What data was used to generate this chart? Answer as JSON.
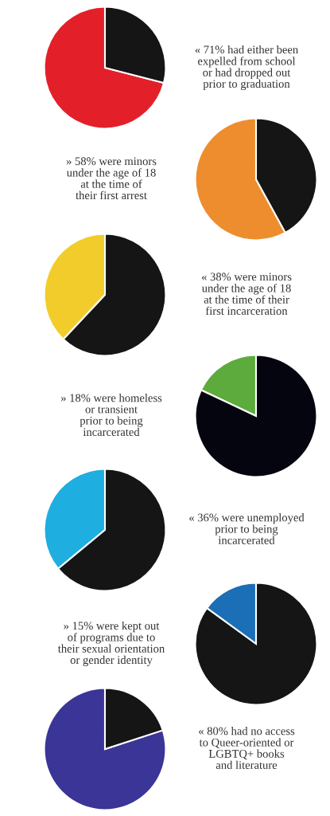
{
  "chart_data": [
    {
      "type": "pie",
      "categories": [
        null,
        null
      ],
      "values": [
        71,
        29
      ],
      "colors": [
        "#e3202a",
        "#151515"
      ],
      "annotations": [
        "« 71% had either been\nexpelled from school\nor had dropped out\nprior to graduation"
      ]
    },
    {
      "type": "pie",
      "categories": [
        null,
        null
      ],
      "values": [
        58,
        42
      ],
      "colors": [
        "#ee8d2e",
        "#151515"
      ],
      "annotations": [
        "» 58% were minors\nunder the age of 18\nat the time of\ntheir first arrest"
      ]
    },
    {
      "type": "pie",
      "categories": [
        null,
        null
      ],
      "values": [
        38,
        62
      ],
      "colors": [
        "#f2cc2a",
        "#151515"
      ],
      "annotations": [
        "« 38% were minors\nunder the age of 18\nat the time of their\nfirst incarceration"
      ]
    },
    {
      "type": "pie",
      "categories": [
        null,
        null
      ],
      "values": [
        18,
        82
      ],
      "colors": [
        "#5cab3c",
        "#05050f"
      ],
      "annotations": [
        "» 18% were homeless\nor transient\nprior to being\nincarcerated"
      ]
    },
    {
      "type": "pie",
      "categories": [
        null,
        null
      ],
      "values": [
        36,
        64
      ],
      "colors": [
        "#1eaee0",
        "#151515"
      ],
      "annotations": [
        "« 36% were unemployed\nprior to being\nincarcerated"
      ]
    },
    {
      "type": "pie",
      "categories": [
        null,
        null
      ],
      "values": [
        15,
        85
      ],
      "colors": [
        "#1a6fb6",
        "#151515"
      ],
      "annotations": [
        "» 15% were kept out\nof programs due to\ntheir sexual orientation\nor gender identity"
      ]
    },
    {
      "type": "pie",
      "categories": [
        null,
        null
      ],
      "values": [
        80,
        20
      ],
      "colors": [
        "#3a3597",
        "#151515"
      ],
      "annotations": [
        "« 80% had no access\nto Queer-oriented or\nLGBTQ+ books\nand literature"
      ]
    }
  ]
}
